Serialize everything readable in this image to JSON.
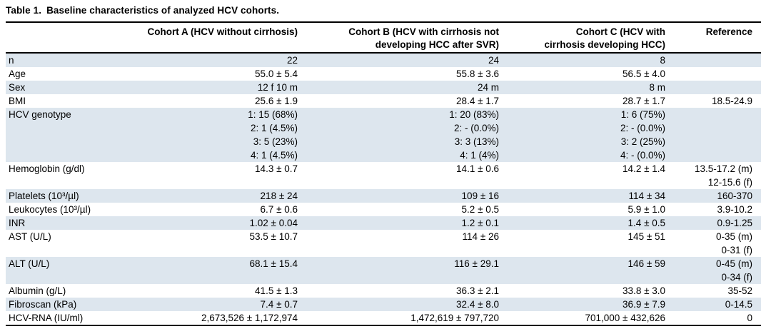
{
  "title": {
    "prefix": "Table 1.",
    "text": "Baseline characteristics of analyzed HCV cohorts."
  },
  "colors": {
    "row_band": "#dde6ee",
    "rule": "#000000",
    "text": "#000000"
  },
  "table": {
    "columns": [
      {
        "lines": [
          ""
        ]
      },
      {
        "lines": [
          "Cohort A (HCV without cirrhosis)"
        ]
      },
      {
        "lines": [
          "Cohort B (HCV with cirrhosis not",
          "developing HCC after SVR)"
        ]
      },
      {
        "lines": [
          "Cohort C (HCV with",
          "cirrhosis developing HCC)"
        ]
      },
      {
        "lines": [
          "Reference"
        ]
      }
    ],
    "rows": [
      {
        "label": "n",
        "shaded": true,
        "a": [
          "22"
        ],
        "b": [
          "24"
        ],
        "c": [
          "8"
        ],
        "ref": []
      },
      {
        "label": "Age",
        "shaded": false,
        "a": [
          "55.0 ± 5.4"
        ],
        "b": [
          "55.8 ± 3.6"
        ],
        "c": [
          "56.5 ± 4.0"
        ],
        "ref": []
      },
      {
        "label": "Sex",
        "shaded": true,
        "a": [
          "12 f 10 m"
        ],
        "b": [
          "24 m"
        ],
        "c": [
          "8 m"
        ],
        "ref": []
      },
      {
        "label": "BMI",
        "shaded": false,
        "a": [
          "25.6 ± 1.9"
        ],
        "b": [
          "28.4 ± 1.7"
        ],
        "c": [
          "28.7 ± 1.7"
        ],
        "ref": [
          "18.5-24.9"
        ]
      },
      {
        "label": "HCV genotype",
        "shaded": true,
        "a": [
          "1: 15 (68%)",
          "2: 1 (4.5%)",
          "3: 5 (23%)",
          "4: 1 (4.5%)"
        ],
        "b": [
          "1: 20 (83%)",
          "2: - (0.0%)",
          "3: 3 (13%)",
          "4: 1 (4%)"
        ],
        "c": [
          "1: 6 (75%)",
          "2: - (0.0%)",
          "3: 2 (25%)",
          "4: - (0.0%)"
        ],
        "ref": []
      },
      {
        "label": "Hemoglobin (g/dl)",
        "shaded": false,
        "a": [
          "14.3 ± 0.7"
        ],
        "b": [
          "14.1 ± 0.6"
        ],
        "c": [
          "14.2 ± 1.4"
        ],
        "ref": [
          "13.5-17.2 (m)",
          "12-15.6 (f)"
        ]
      },
      {
        "label": "Platelets (10³/µl)",
        "shaded": true,
        "a": [
          "218 ± 24"
        ],
        "b": [
          "109 ± 16"
        ],
        "c": [
          "114 ± 34"
        ],
        "ref": [
          "160-370"
        ]
      },
      {
        "label": "Leukocytes (10³/µl)",
        "shaded": false,
        "a": [
          "6.7 ± 0.6"
        ],
        "b": [
          "5.2 ± 0.5"
        ],
        "c": [
          "5.9 ± 1.0"
        ],
        "ref": [
          "3.9-10.2"
        ]
      },
      {
        "label": "INR",
        "shaded": true,
        "a": [
          "1.02 ± 0.04"
        ],
        "b": [
          "1.2 ± 0.1"
        ],
        "c": [
          "1.4 ± 0.5"
        ],
        "ref": [
          "0.9-1.25"
        ]
      },
      {
        "label": "AST (U/L)",
        "shaded": false,
        "a": [
          "53.5 ± 10.7"
        ],
        "b": [
          "114 ± 26"
        ],
        "c": [
          "145 ± 51"
        ],
        "ref": [
          "0-35 (m)",
          "0-31 (f)"
        ]
      },
      {
        "label": "ALT (U/L)",
        "shaded": true,
        "a": [
          "68.1 ± 15.4"
        ],
        "b": [
          "116 ± 29.1"
        ],
        "c": [
          "146 ± 59"
        ],
        "ref": [
          "0-45 (m)",
          "0-34 (f)"
        ]
      },
      {
        "label": "Albumin (g/L)",
        "shaded": false,
        "a": [
          "41.5 ± 1.3"
        ],
        "b": [
          "36.3 ± 2.1"
        ],
        "c": [
          "33.8 ± 3.0"
        ],
        "ref": [
          "35-52"
        ]
      },
      {
        "label": "Fibroscan (kPa)",
        "shaded": true,
        "a": [
          "7.4 ± 0.7"
        ],
        "b": [
          "32.4 ± 8.0"
        ],
        "c": [
          "36.9 ± 7.9"
        ],
        "ref": [
          "0-14.5"
        ]
      },
      {
        "label": "HCV-RNA (IU/ml)",
        "shaded": false,
        "a": [
          "2,673,526 ± 1,172,974"
        ],
        "b": [
          "1,472,619 ± 797,720"
        ],
        "c": [
          "701,000 ± 432,626"
        ],
        "ref": [
          "0"
        ]
      }
    ]
  }
}
